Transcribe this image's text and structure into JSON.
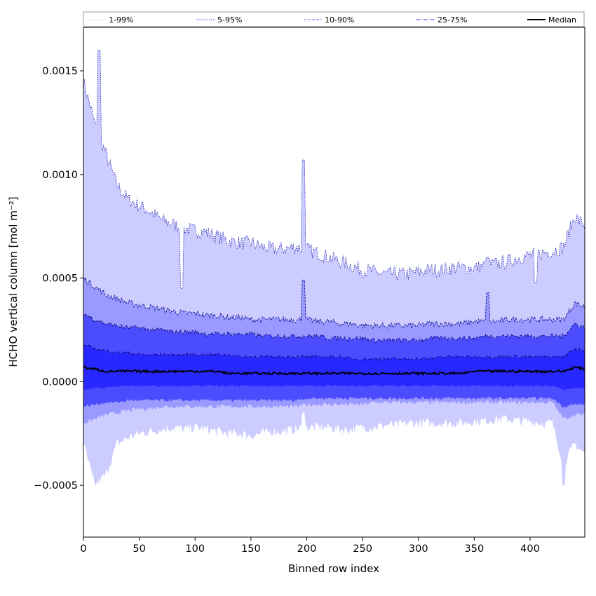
{
  "chart_data": {
    "type": "area",
    "xlabel": "Binned row index",
    "ylabel": "HCHO vertical column [mol m⁻²]",
    "xlim": [
      0,
      449
    ],
    "ylim": [
      -0.00075,
      0.00171
    ],
    "x_ticks": [
      0,
      50,
      100,
      150,
      200,
      250,
      300,
      350,
      400
    ],
    "x_tick_labels": [
      "0",
      "50",
      "100",
      "150",
      "200",
      "250",
      "300",
      "350",
      "400"
    ],
    "y_ticks": [
      -0.0005,
      0.0,
      0.0005,
      0.001,
      0.0015
    ],
    "y_tick_labels": [
      "−0.0005",
      "0.0000",
      "0.0005",
      "0.0010",
      "0.0015"
    ],
    "grid": false,
    "legend_position": "top, spanning full width above plot",
    "legend": [
      {
        "label": "1-99%",
        "style": "dotted",
        "color": "#cccccc"
      },
      {
        "label": "5-95%",
        "style": "dotted",
        "color": "#3333ff"
      },
      {
        "label": "10-90%",
        "style": "dashed",
        "color": "#6666ff"
      },
      {
        "label": "25-75%",
        "style": "dashdot",
        "color": "#2a2aff"
      },
      {
        "label": "Median",
        "style": "solid",
        "color": "#000000"
      }
    ],
    "band_colors": {
      "p1_99": "#ccccff",
      "p5_95": "#9999ff",
      "p10_90": "#4c4cff",
      "p25_75": "#2727ff",
      "median": "#000000"
    },
    "x": [
      0,
      10,
      20,
      30,
      40,
      50,
      60,
      70,
      80,
      90,
      100,
      110,
      120,
      130,
      140,
      150,
      160,
      170,
      180,
      190,
      200,
      210,
      220,
      230,
      240,
      250,
      260,
      270,
      280,
      290,
      300,
      310,
      320,
      330,
      340,
      350,
      360,
      370,
      380,
      390,
      400,
      410,
      420,
      430,
      440,
      449
    ],
    "series": [
      {
        "name": "1-99%",
        "lower": [
          -0.0003,
          -0.0005,
          -0.00045,
          -0.0003,
          -0.00027,
          -0.00025,
          -0.00024,
          -0.00023,
          -0.00022,
          -0.00023,
          -0.00022,
          -0.00023,
          -0.00024,
          -0.00025,
          -0.00025,
          -0.00026,
          -0.00025,
          -0.00024,
          -0.00024,
          -0.00023,
          -0.00022,
          -0.00022,
          -0.00022,
          -0.00023,
          -0.00023,
          -0.00022,
          -0.00022,
          -0.00021,
          -0.00021,
          -0.0002,
          -0.0002,
          -0.0002,
          -0.0002,
          -0.0002,
          -0.0002,
          -0.00019,
          -0.00019,
          -0.00018,
          -0.00018,
          -0.00019,
          -0.00019,
          -0.0002,
          -0.0002,
          -0.0004,
          -0.0003,
          -0.00035
        ],
        "upper": [
          0.00145,
          0.00125,
          0.0011,
          0.00095,
          0.00088,
          0.00085,
          0.00082,
          0.00078,
          0.00076,
          0.00074,
          0.00073,
          0.00072,
          0.0007,
          0.00068,
          0.00067,
          0.00067,
          0.00065,
          0.00064,
          0.00064,
          0.00065,
          0.00064,
          0.00062,
          0.0006,
          0.00058,
          0.00056,
          0.00054,
          0.00053,
          0.00052,
          0.00052,
          0.00052,
          0.00053,
          0.00054,
          0.00054,
          0.00055,
          0.00055,
          0.00055,
          0.00056,
          0.00057,
          0.00058,
          0.0006,
          0.00061,
          0.00062,
          0.00063,
          0.00065,
          0.0008,
          0.00075
        ]
      },
      {
        "name": "5-95%",
        "lower": [
          -0.0002,
          -0.00018,
          -0.00016,
          -0.00015,
          -0.00014,
          -0.00013,
          -0.00013,
          -0.00012,
          -0.00012,
          -0.00012,
          -0.00012,
          -0.00012,
          -0.00012,
          -0.00012,
          -0.00012,
          -0.00012,
          -0.00012,
          -0.00012,
          -0.00012,
          -0.00012,
          -0.00011,
          -0.00011,
          -0.00011,
          -0.00011,
          -0.00011,
          -0.00011,
          -0.0001,
          -0.0001,
          -0.0001,
          -0.0001,
          -0.0001,
          -0.0001,
          -0.0001,
          -0.0001,
          -0.0001,
          -0.0001,
          -0.0001,
          -0.0001,
          -0.0001,
          -0.0001,
          -0.0001,
          -0.0001,
          -0.0001,
          -0.00018,
          -0.00016,
          -0.00016
        ],
        "upper": [
          0.0005,
          0.00046,
          0.00042,
          0.0004,
          0.00038,
          0.00037,
          0.00036,
          0.00035,
          0.00034,
          0.00033,
          0.00033,
          0.00032,
          0.00032,
          0.00031,
          0.00031,
          0.0003,
          0.0003,
          0.0003,
          0.0003,
          0.0003,
          0.0003,
          0.00029,
          0.00029,
          0.00028,
          0.00028,
          0.00027,
          0.00027,
          0.00027,
          0.00027,
          0.00027,
          0.00027,
          0.00028,
          0.00028,
          0.00028,
          0.00028,
          0.00029,
          0.00029,
          0.00029,
          0.0003,
          0.0003,
          0.0003,
          0.0003,
          0.0003,
          0.0003,
          0.00038,
          0.00036
        ]
      },
      {
        "name": "10-90%",
        "lower": [
          -0.00012,
          -0.00011,
          -0.0001,
          -0.0001,
          -9e-05,
          -9e-05,
          -9e-05,
          -9e-05,
          -9e-05,
          -9e-05,
          -9e-05,
          -9e-05,
          -9e-05,
          -9e-05,
          -9e-05,
          -9e-05,
          -9e-05,
          -9e-05,
          -9e-05,
          -9e-05,
          -8e-05,
          -8e-05,
          -8e-05,
          -8e-05,
          -8e-05,
          -8e-05,
          -8e-05,
          -8e-05,
          -8e-05,
          -8e-05,
          -8e-05,
          -8e-05,
          -8e-05,
          -8e-05,
          -8e-05,
          -8e-05,
          -8e-05,
          -8e-05,
          -8e-05,
          -8e-05,
          -8e-05,
          -8e-05,
          -8e-05,
          -0.00012,
          -0.00011,
          -0.00011
        ],
        "upper": [
          0.00033,
          0.0003,
          0.00028,
          0.00027,
          0.00026,
          0.00026,
          0.00025,
          0.00025,
          0.00024,
          0.00024,
          0.00024,
          0.00023,
          0.00023,
          0.00023,
          0.00023,
          0.00023,
          0.00022,
          0.00022,
          0.00022,
          0.00022,
          0.00022,
          0.00022,
          0.00021,
          0.00021,
          0.00021,
          0.00021,
          0.0002,
          0.0002,
          0.0002,
          0.0002,
          0.0002,
          0.00021,
          0.00021,
          0.00021,
          0.00021,
          0.00021,
          0.00022,
          0.00022,
          0.00022,
          0.00022,
          0.00022,
          0.00022,
          0.00022,
          0.00022,
          0.00028,
          0.00026
        ]
      },
      {
        "name": "25-75%",
        "lower": [
          -4e-05,
          -3e-05,
          -3e-05,
          -2e-05,
          -2e-05,
          -2e-05,
          -2e-05,
          -2e-05,
          -2e-05,
          -2e-05,
          -2e-05,
          -2e-05,
          -2e-05,
          -2e-05,
          -2e-05,
          -2e-05,
          -2e-05,
          -2e-05,
          -2e-05,
          -2e-05,
          -2e-05,
          -2e-05,
          -2e-05,
          -2e-05,
          -2e-05,
          -2e-05,
          -2e-05,
          -2e-05,
          -2e-05,
          -2e-05,
          -2e-05,
          -2e-05,
          -2e-05,
          -2e-05,
          -2e-05,
          -2e-05,
          -2e-05,
          -2e-05,
          -2e-05,
          -2e-05,
          -2e-05,
          -2e-05,
          -2e-05,
          -4e-05,
          -3e-05,
          -3e-05
        ],
        "upper": [
          0.00018,
          0.00016,
          0.00015,
          0.00014,
          0.00014,
          0.00013,
          0.00013,
          0.00013,
          0.00013,
          0.00013,
          0.00013,
          0.00013,
          0.00013,
          0.00013,
          0.00012,
          0.00012,
          0.00012,
          0.00012,
          0.00012,
          0.00012,
          0.00012,
          0.00012,
          0.00012,
          0.00012,
          0.00011,
          0.00011,
          0.00011,
          0.00011,
          0.00011,
          0.00011,
          0.00011,
          0.00011,
          0.00012,
          0.00012,
          0.00012,
          0.00012,
          0.00012,
          0.00012,
          0.00012,
          0.00012,
          0.00012,
          0.00012,
          0.00012,
          0.00012,
          0.00016,
          0.00015
        ]
      },
      {
        "name": "Median",
        "values": [
          7e-05,
          6e-05,
          5e-05,
          5e-05,
          5e-05,
          5e-05,
          5e-05,
          5e-05,
          5e-05,
          5e-05,
          5e-05,
          5e-05,
          5e-05,
          4e-05,
          4e-05,
          4e-05,
          4e-05,
          4e-05,
          4e-05,
          4e-05,
          4e-05,
          4e-05,
          4e-05,
          4e-05,
          4e-05,
          4e-05,
          4e-05,
          4e-05,
          4e-05,
          4e-05,
          4e-05,
          4e-05,
          4e-05,
          4e-05,
          4e-05,
          5e-05,
          5e-05,
          5e-05,
          5e-05,
          5e-05,
          5e-05,
          5e-05,
          5e-05,
          5e-05,
          7e-05,
          6e-05
        ]
      }
    ],
    "spikes": [
      {
        "x": 14,
        "p1_99_upper": 0.0016
      },
      {
        "x": 88,
        "p1_99_upper": 0.00045,
        "p5_95_lower": -0.00012
      },
      {
        "x": 197,
        "p1_99_upper": 0.00107,
        "p5_95_upper": 0.00049,
        "p1_99_lower": -0.00015
      },
      {
        "x": 362,
        "p1_99_upper": 0.0006,
        "p5_95_upper": 0.00043
      },
      {
        "x": 405,
        "p1_99_upper": 0.00048
      },
      {
        "x": 430,
        "p1_99_lower": -0.0005
      }
    ]
  }
}
